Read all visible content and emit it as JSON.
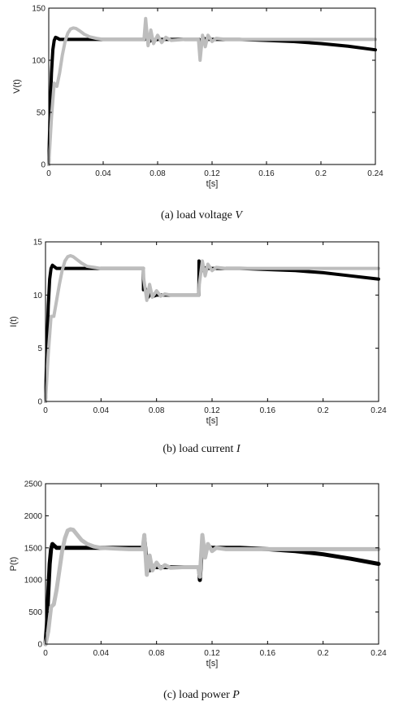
{
  "chart_data": [
    {
      "type": "line",
      "title": "",
      "caption": "(a)  load voltage",
      "caption_var": "V",
      "xlabel": "t[s]",
      "ylabel": "V(t)",
      "xlim": [
        0,
        0.24
      ],
      "ylim": [
        0,
        150
      ],
      "xticks": [
        0,
        0.04,
        0.08,
        0.12,
        0.16,
        0.2,
        0.24
      ],
      "xtick_labels": [
        "0",
        "0.04",
        "0.08",
        "0.12",
        "0.16",
        "0.2",
        "0.24"
      ],
      "yticks": [
        0,
        50,
        100,
        150
      ],
      "ytick_labels": [
        "0",
        "50",
        "100",
        "150"
      ],
      "grid": false,
      "series": [
        {
          "color": "#000000",
          "width": 4,
          "x": [
            0,
            0.001,
            0.002,
            0.003,
            0.004,
            0.005,
            0.006,
            0.008,
            0.012,
            0.02,
            0.04,
            0.06,
            0.0705,
            0.0712,
            0.0725,
            0.074,
            0.076,
            0.078,
            0.08,
            0.09,
            0.1,
            0.1105,
            0.1112,
            0.1125,
            0.114,
            0.116,
            0.12,
            0.14,
            0.16,
            0.18,
            0.2,
            0.22,
            0.24
          ],
          "y": [
            0,
            50,
            88,
            110,
            119,
            122,
            121.5,
            120,
            120,
            120,
            120,
            120,
            120,
            132,
            121,
            118,
            120,
            119.5,
            120,
            120,
            120,
            120,
            108,
            117,
            121,
            120,
            120,
            120,
            119,
            118,
            116,
            113.5,
            110
          ]
        },
        {
          "color": "#bdbdbd",
          "width": 4,
          "x": [
            0,
            0.002,
            0.004,
            0.006,
            0.008,
            0.01,
            0.012,
            0.014,
            0.016,
            0.018,
            0.02,
            0.023,
            0.026,
            0.03,
            0.035,
            0.04,
            0.05,
            0.06,
            0.07,
            0.0712,
            0.073,
            0.075,
            0.077,
            0.08,
            0.083,
            0.086,
            0.09,
            0.1,
            0.11,
            0.1112,
            0.113,
            0.115,
            0.117,
            0.12,
            0.123,
            0.13,
            0.14,
            0.16,
            0.18,
            0.2,
            0.22,
            0.24
          ],
          "y": [
            0,
            45,
            78,
            75,
            88,
            105,
            118,
            126,
            130,
            131,
            130.5,
            128,
            125,
            122.5,
            121,
            120,
            120,
            120,
            120,
            140,
            114,
            129,
            116,
            124,
            117,
            122,
            119,
            120,
            120,
            100,
            124,
            113,
            124,
            118,
            121,
            120,
            120,
            120,
            120,
            120,
            120,
            120
          ]
        }
      ]
    },
    {
      "type": "line",
      "title": "",
      "caption": "(b)  load current",
      "caption_var": "I",
      "xlabel": "t[s]",
      "ylabel": "I(t)",
      "xlim": [
        0,
        0.24
      ],
      "ylim": [
        0,
        15
      ],
      "xticks": [
        0,
        0.04,
        0.08,
        0.12,
        0.16,
        0.2,
        0.24
      ],
      "xtick_labels": [
        "0",
        "0.04",
        "0.08",
        "0.12",
        "0.16",
        "0.2",
        "0.24"
      ],
      "yticks": [
        0,
        5,
        10,
        15
      ],
      "ytick_labels": [
        "0",
        "5",
        "10",
        "15"
      ],
      "grid": false,
      "series": [
        {
          "color": "#000000",
          "width": 4,
          "x": [
            0,
            0.001,
            0.002,
            0.003,
            0.004,
            0.005,
            0.006,
            0.008,
            0.012,
            0.02,
            0.04,
            0.06,
            0.0705,
            0.0706,
            0.072,
            0.074,
            0.076,
            0.078,
            0.08,
            0.09,
            0.1,
            0.1105,
            0.1106,
            0.112,
            0.114,
            0.116,
            0.12,
            0.14,
            0.16,
            0.18,
            0.2,
            0.22,
            0.24
          ],
          "y": [
            0,
            5,
            9,
            11.5,
            12.5,
            12.8,
            12.7,
            12.5,
            12.5,
            12.5,
            12.5,
            12.5,
            12.5,
            10.5,
            10.6,
            9.8,
            10.2,
            9.9,
            10,
            10,
            10,
            10,
            13.2,
            12.2,
            12.6,
            12.5,
            12.5,
            12.5,
            12.4,
            12.3,
            12.1,
            11.8,
            11.5
          ]
        },
        {
          "color": "#bdbdbd",
          "width": 4,
          "x": [
            0,
            0.002,
            0.004,
            0.006,
            0.008,
            0.01,
            0.012,
            0.014,
            0.016,
            0.018,
            0.02,
            0.023,
            0.026,
            0.03,
            0.035,
            0.04,
            0.05,
            0.06,
            0.07,
            0.0705,
            0.0708,
            0.073,
            0.075,
            0.077,
            0.08,
            0.083,
            0.086,
            0.09,
            0.1,
            0.11,
            0.1105,
            0.1108,
            0.113,
            0.115,
            0.117,
            0.12,
            0.123,
            0.13,
            0.14,
            0.16,
            0.18,
            0.2,
            0.22,
            0.24
          ],
          "y": [
            0,
            4.5,
            8,
            8,
            9.5,
            11,
            12.3,
            13.2,
            13.6,
            13.7,
            13.6,
            13.3,
            13,
            12.7,
            12.6,
            12.5,
            12.5,
            12.5,
            12.5,
            12.5,
            11.5,
            9.5,
            11,
            9.8,
            10.4,
            9.9,
            10.1,
            10,
            10,
            10,
            10,
            11,
            13.2,
            11.8,
            12.9,
            12.3,
            12.6,
            12.5,
            12.5,
            12.5,
            12.5,
            12.5,
            12.5,
            12.5
          ]
        }
      ]
    },
    {
      "type": "line",
      "title": "",
      "caption": "(c)  load power",
      "caption_var": "P",
      "xlabel": "t[s]",
      "ylabel": "P(t)",
      "xlim": [
        0,
        0.24
      ],
      "ylim": [
        0,
        2500
      ],
      "xticks": [
        0,
        0.04,
        0.08,
        0.12,
        0.16,
        0.2,
        0.24
      ],
      "xtick_labels": [
        "0",
        "0.04",
        "0.08",
        "0.12",
        "0.16",
        "0.2",
        "0.24"
      ],
      "yticks": [
        0,
        500,
        1000,
        1500,
        2000,
        2500
      ],
      "ytick_labels": [
        "0",
        "500",
        "1000",
        "1500",
        "2000",
        "2500"
      ],
      "grid": false,
      "series": [
        {
          "color": "#000000",
          "width": 5,
          "x": [
            0,
            0.001,
            0.002,
            0.003,
            0.004,
            0.005,
            0.006,
            0.008,
            0.012,
            0.02,
            0.04,
            0.06,
            0.0705,
            0.0712,
            0.073,
            0.075,
            0.077,
            0.08,
            0.09,
            0.1,
            0.1105,
            0.1112,
            0.113,
            0.115,
            0.117,
            0.12,
            0.14,
            0.16,
            0.18,
            0.2,
            0.22,
            0.24
          ],
          "y": [
            0,
            300,
            800,
            1250,
            1480,
            1560,
            1540,
            1500,
            1500,
            1500,
            1500,
            1500,
            1500,
            1650,
            1250,
            1150,
            1220,
            1200,
            1200,
            1200,
            1200,
            1000,
            1600,
            1450,
            1520,
            1500,
            1500,
            1480,
            1450,
            1400,
            1330,
            1250
          ]
        },
        {
          "color": "#bdbdbd",
          "width": 5,
          "x": [
            0,
            0.002,
            0.004,
            0.006,
            0.008,
            0.01,
            0.012,
            0.014,
            0.016,
            0.018,
            0.02,
            0.023,
            0.026,
            0.03,
            0.035,
            0.04,
            0.05,
            0.06,
            0.07,
            0.0712,
            0.073,
            0.075,
            0.077,
            0.08,
            0.083,
            0.086,
            0.09,
            0.1,
            0.11,
            0.1112,
            0.113,
            0.115,
            0.117,
            0.12,
            0.123,
            0.13,
            0.14,
            0.16,
            0.18,
            0.2,
            0.22,
            0.24
          ],
          "y": [
            0,
            200,
            580,
            620,
            850,
            1150,
            1450,
            1650,
            1770,
            1790,
            1780,
            1700,
            1620,
            1560,
            1520,
            1500,
            1490,
            1480,
            1480,
            1700,
            1080,
            1380,
            1150,
            1270,
            1180,
            1230,
            1190,
            1200,
            1200,
            1050,
            1700,
            1350,
            1560,
            1450,
            1500,
            1480,
            1480,
            1480,
            1480,
            1480,
            1480,
            1480
          ]
        }
      ]
    }
  ]
}
